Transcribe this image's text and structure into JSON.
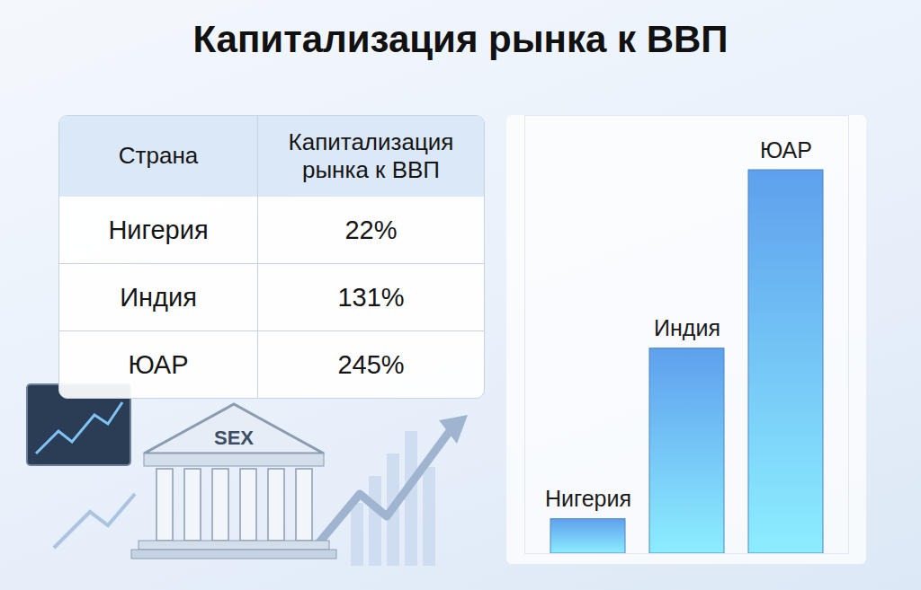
{
  "title": "Капитализация рынка к ВВП",
  "table": {
    "header": [
      "Страна",
      "Капитализация рынка к ВВП"
    ],
    "rows": [
      [
        "Нигерия",
        "22%"
      ],
      [
        "Индия",
        "131%"
      ],
      [
        "ЮАР",
        "245%"
      ]
    ]
  },
  "chart_data": {
    "type": "bar",
    "categories": [
      "Нигерия",
      "Индия",
      "ЮАР"
    ],
    "values": [
      22,
      131,
      245
    ],
    "color": "#4f86c6",
    "ylim": [
      0,
      280
    ],
    "tick_labels": false
  },
  "illustration": {
    "building_label": "SEX"
  }
}
